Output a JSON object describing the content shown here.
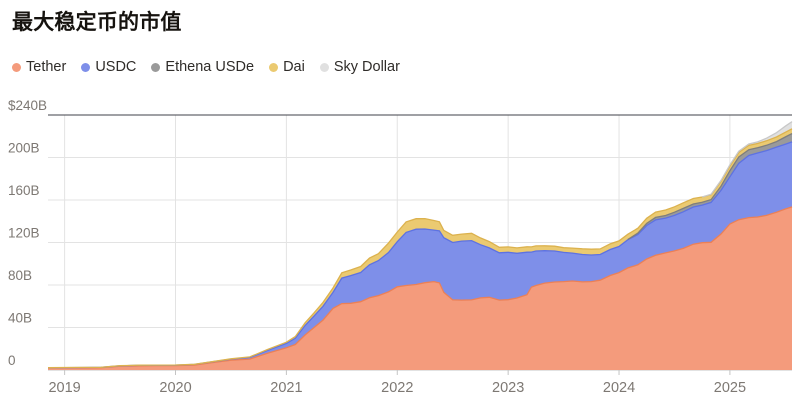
{
  "title": "最大稳定币的市值",
  "colors": {
    "background": "#ffffff",
    "grid": "#e3e3e3",
    "top_rule": "#3f4248",
    "axis": "#c4c4c4",
    "tick_label": "#7d7873"
  },
  "chart_data": {
    "type": "area",
    "stacked": true,
    "title": "最大稳定币的市值",
    "xlabel": "",
    "ylabel": "",
    "xlim": [
      2018.85,
      2025.56
    ],
    "ylim": [
      0,
      240
    ],
    "grid": true,
    "legend_position": "top",
    "units": "$B",
    "x": [
      2018.85,
      2019,
      2019.17,
      2019.33,
      2019.5,
      2019.67,
      2019.83,
      2020,
      2020.17,
      2020.33,
      2020.5,
      2020.67,
      2020.83,
      2021,
      2021.08,
      2021.17,
      2021.25,
      2021.33,
      2021.42,
      2021.5,
      2021.58,
      2021.67,
      2021.75,
      2021.83,
      2021.92,
      2022,
      2022.08,
      2022.17,
      2022.25,
      2022.33,
      2022.38,
      2022.42,
      2022.5,
      2022.58,
      2022.67,
      2022.75,
      2022.83,
      2022.92,
      2023,
      2023.08,
      2023.17,
      2023.21,
      2023.25,
      2023.33,
      2023.42,
      2023.5,
      2023.58,
      2023.67,
      2023.75,
      2023.83,
      2023.92,
      2024,
      2024.08,
      2024.17,
      2024.25,
      2024.33,
      2024.42,
      2024.5,
      2024.58,
      2024.67,
      2024.75,
      2024.83,
      2024.92,
      2025,
      2025.08,
      2025.17,
      2025.25,
      2025.33,
      2025.42,
      2025.5,
      2025.56
    ],
    "series": [
      {
        "id": "tether",
        "name": "Tether",
        "color": "#F49B7C",
        "edge": "#EC8056",
        "values": [
          1.9,
          2,
          2.1,
          2.2,
          3.6,
          4,
          4.1,
          4.1,
          4.6,
          7,
          9.2,
          10.3,
          15.8,
          21,
          24,
          33,
          40,
          47,
          58,
          62.5,
          62.8,
          64.3,
          68,
          70,
          73.5,
          78.3,
          79.5,
          80.5,
          82.2,
          83.2,
          82,
          73,
          66,
          65.8,
          66,
          67.9,
          68.4,
          65.8,
          66.2,
          67.8,
          70.9,
          78,
          79.5,
          81.8,
          82.8,
          83.2,
          83.8,
          82.9,
          83.2,
          84.5,
          88.9,
          91.7,
          96.1,
          99,
          104.5,
          108,
          110.2,
          112.1,
          114.4,
          118.4,
          119.8,
          120.2,
          128,
          137.4,
          141.5,
          143.4,
          144,
          145.5,
          148.5,
          151.5,
          153.5
        ]
      },
      {
        "id": "usdc",
        "name": "USDC",
        "color": "#7E8FE9",
        "edge": "#5D72E2",
        "values": [
          0.25,
          0.25,
          0.25,
          0.3,
          0.35,
          0.42,
          0.46,
          0.52,
          0.65,
          0.73,
          1.1,
          1.6,
          2.6,
          4,
          5.8,
          9,
          10.8,
          13,
          15,
          24,
          26,
          27.5,
          31,
          33,
          37,
          42.5,
          50,
          52,
          50.5,
          48.5,
          49,
          51.5,
          54,
          55.5,
          55.8,
          50,
          46.5,
          44.5,
          44.6,
          42,
          40,
          33,
          32.5,
          30.5,
          29.2,
          27.5,
          26.2,
          25.8,
          25,
          24.2,
          24.5,
          24.5,
          26.5,
          28.5,
          31.5,
          33.3,
          32.8,
          33.4,
          34.5,
          35,
          35.4,
          37.5,
          41,
          44.4,
          53,
          58.5,
          60.2,
          61,
          61.3,
          61,
          61.2
        ]
      },
      {
        "id": "ethena-usde",
        "name": "Ethena USDe",
        "color": "#9A9A9A",
        "edge": "#7E7E7E",
        "values": [
          0,
          0,
          0,
          0,
          0,
          0,
          0,
          0,
          0,
          0,
          0,
          0,
          0,
          0,
          0,
          0,
          0,
          0,
          0,
          0,
          0,
          0,
          0,
          0,
          0,
          0,
          0,
          0,
          0,
          0,
          0,
          0,
          0,
          0,
          0,
          0,
          0,
          0,
          0,
          0,
          0,
          0,
          0,
          0,
          0,
          0,
          0,
          0,
          0,
          0,
          0,
          0,
          0.3,
          1.3,
          2,
          2.35,
          2.4,
          3,
          3.2,
          2.8,
          2.6,
          2.7,
          4,
          5.8,
          6,
          5.4,
          4.9,
          5,
          5.2,
          6.8,
          7.8
        ]
      },
      {
        "id": "dai",
        "name": "Dai",
        "color": "#EBCA71",
        "edge": "#DCB24E",
        "values": [
          0.05,
          0.06,
          0.06,
          0.07,
          0.08,
          0.08,
          0.09,
          0.1,
          0.11,
          0.12,
          0.2,
          0.42,
          0.9,
          1.2,
          1.6,
          2.5,
          3,
          3.6,
          4.2,
          5,
          5.3,
          5.6,
          6.3,
          6.5,
          8.8,
          9.1,
          9.9,
          9.9,
          9.8,
          9,
          8.5,
          6.9,
          6.8,
          6.6,
          6.9,
          6.4,
          5.9,
          5.2,
          5.1,
          5.1,
          5.1,
          4.9,
          4.8,
          4.6,
          4.5,
          4.4,
          4.7,
          5.4,
          5.5,
          5.3,
          5.3,
          5.3,
          4.9,
          4.7,
          4.8,
          5,
          5.2,
          5.1,
          5.3,
          5.2,
          5,
          4.6,
          4.5,
          4.4,
          4.2,
          4.1,
          4.1,
          4.2,
          4.3,
          4.4,
          4.5
        ]
      },
      {
        "id": "sky-dollar",
        "name": "Sky Dollar",
        "color": "#E0E0E0",
        "edge": "#C8C8C8",
        "values": [
          0,
          0,
          0,
          0,
          0,
          0,
          0,
          0,
          0,
          0,
          0,
          0,
          0,
          0,
          0,
          0,
          0,
          0,
          0,
          0,
          0,
          0,
          0,
          0,
          0,
          0,
          0,
          0,
          0,
          0,
          0,
          0,
          0,
          0,
          0,
          0,
          0,
          0,
          0,
          0,
          0,
          0,
          0,
          0,
          0,
          0,
          0,
          0,
          0,
          0,
          0,
          0,
          0,
          0,
          0,
          0,
          0,
          0,
          0,
          0,
          0.05,
          0.45,
          0.9,
          1.1,
          1.2,
          1.3,
          1.5,
          2.5,
          4,
          5.8,
          6.8
        ]
      }
    ],
    "y_ticks": [
      {
        "value": 240,
        "label": "$240B"
      },
      {
        "value": 200,
        "label": "200B"
      },
      {
        "value": 160,
        "label": "160B"
      },
      {
        "value": 120,
        "label": "120B"
      },
      {
        "value": 80,
        "label": "80B"
      },
      {
        "value": 40,
        "label": "40B"
      },
      {
        "value": 0,
        "label": "0"
      }
    ],
    "x_ticks": [
      {
        "value": 2019,
        "label": "2019"
      },
      {
        "value": 2020,
        "label": "2020"
      },
      {
        "value": 2021,
        "label": "2021"
      },
      {
        "value": 2022,
        "label": "2022"
      },
      {
        "value": 2023,
        "label": "2023"
      },
      {
        "value": 2024,
        "label": "2024"
      },
      {
        "value": 2025,
        "label": "2025"
      }
    ]
  }
}
